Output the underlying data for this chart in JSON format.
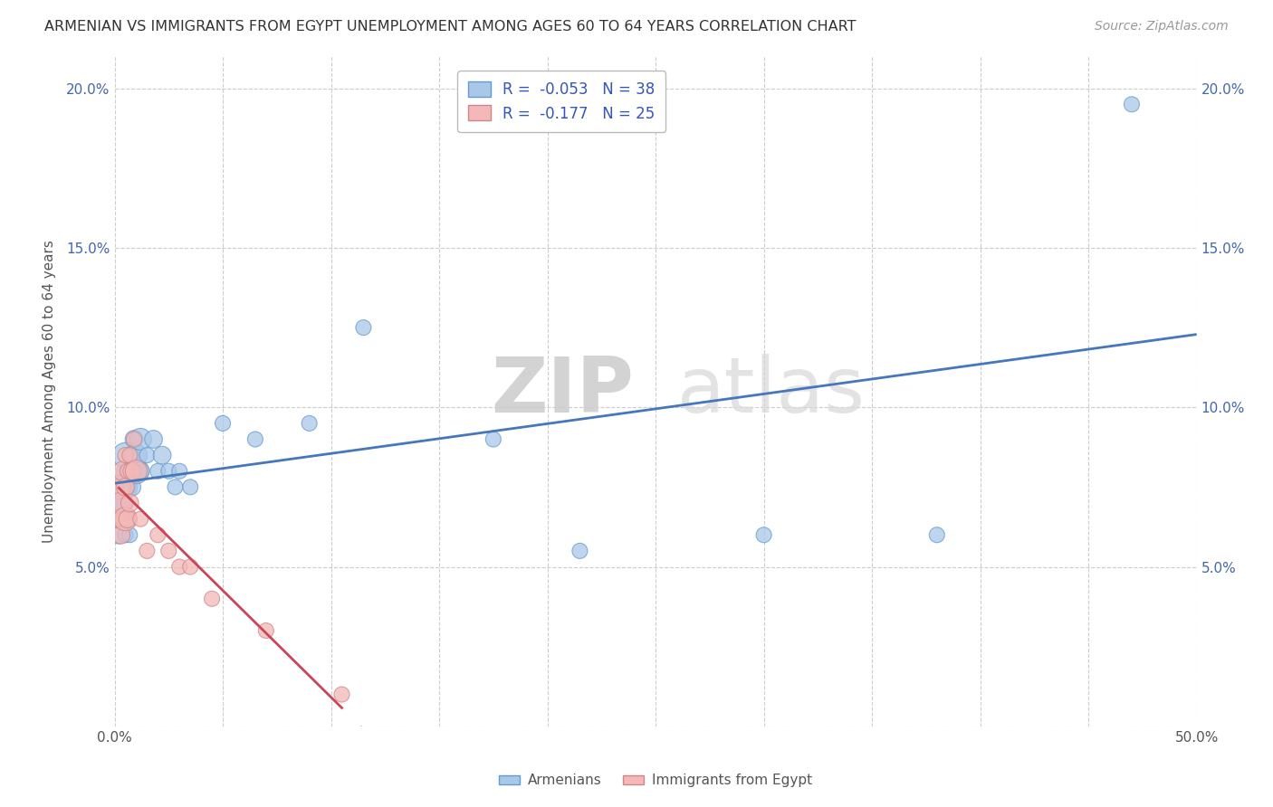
{
  "title": "ARMENIAN VS IMMIGRANTS FROM EGYPT UNEMPLOYMENT AMONG AGES 60 TO 64 YEARS CORRELATION CHART",
  "source": "Source: ZipAtlas.com",
  "ylabel": "Unemployment Among Ages 60 to 64 years",
  "xlim": [
    0.0,
    0.5
  ],
  "ylim": [
    0.0,
    0.21
  ],
  "xticks": [
    0.0,
    0.05,
    0.1,
    0.15,
    0.2,
    0.25,
    0.3,
    0.35,
    0.4,
    0.45,
    0.5
  ],
  "yticks": [
    0.0,
    0.05,
    0.1,
    0.15,
    0.2
  ],
  "legend_r1": "R =  -0.053",
  "legend_n1": "N = 38",
  "legend_r2": "R =  -0.177",
  "legend_n2": "N = 25",
  "color_armenian": "#a8c8e8",
  "color_egypt": "#f4b8b8",
  "color_edge_armenian": "#6699cc",
  "color_edge_egypt": "#cc8888",
  "color_line_armenian": "#4477bb",
  "color_line_egypt": "#cc4455",
  "watermark_zip": "ZIP",
  "watermark_atlas": "atlas",
  "armenian_x": [
    0.002,
    0.003,
    0.003,
    0.004,
    0.004,
    0.005,
    0.005,
    0.005,
    0.005,
    0.006,
    0.006,
    0.007,
    0.007,
    0.008,
    0.008,
    0.009,
    0.009,
    0.01,
    0.01,
    0.012,
    0.012,
    0.015,
    0.018,
    0.02,
    0.022,
    0.025,
    0.028,
    0.03,
    0.035,
    0.05,
    0.065,
    0.09,
    0.115,
    0.175,
    0.215,
    0.3,
    0.38,
    0.47
  ],
  "armenian_y": [
    0.06,
    0.065,
    0.07,
    0.07,
    0.075,
    0.075,
    0.08,
    0.085,
    0.06,
    0.065,
    0.075,
    0.06,
    0.08,
    0.075,
    0.085,
    0.08,
    0.09,
    0.08,
    0.085,
    0.08,
    0.09,
    0.085,
    0.09,
    0.08,
    0.085,
    0.08,
    0.075,
    0.08,
    0.075,
    0.095,
    0.09,
    0.095,
    0.125,
    0.09,
    0.055,
    0.06,
    0.06,
    0.195
  ],
  "armenian_sizes": [
    200,
    150,
    200,
    250,
    300,
    350,
    200,
    400,
    150,
    150,
    150,
    150,
    200,
    200,
    150,
    200,
    200,
    400,
    300,
    200,
    300,
    150,
    200,
    150,
    200,
    150,
    150,
    150,
    150,
    150,
    150,
    150,
    150,
    150,
    150,
    150,
    150,
    150
  ],
  "egypt_x": [
    0.002,
    0.002,
    0.003,
    0.003,
    0.004,
    0.004,
    0.005,
    0.005,
    0.005,
    0.006,
    0.006,
    0.007,
    0.007,
    0.008,
    0.009,
    0.01,
    0.012,
    0.015,
    0.02,
    0.025,
    0.03,
    0.035,
    0.045,
    0.07,
    0.105
  ],
  "egypt_y": [
    0.065,
    0.075,
    0.06,
    0.07,
    0.065,
    0.08,
    0.065,
    0.075,
    0.085,
    0.065,
    0.08,
    0.07,
    0.085,
    0.08,
    0.09,
    0.08,
    0.065,
    0.055,
    0.06,
    0.055,
    0.05,
    0.05,
    0.04,
    0.03,
    0.01
  ],
  "egypt_sizes": [
    200,
    350,
    200,
    300,
    150,
    250,
    350,
    200,
    150,
    200,
    150,
    200,
    150,
    200,
    150,
    300,
    150,
    150,
    150,
    150,
    150,
    150,
    150,
    150,
    150
  ]
}
